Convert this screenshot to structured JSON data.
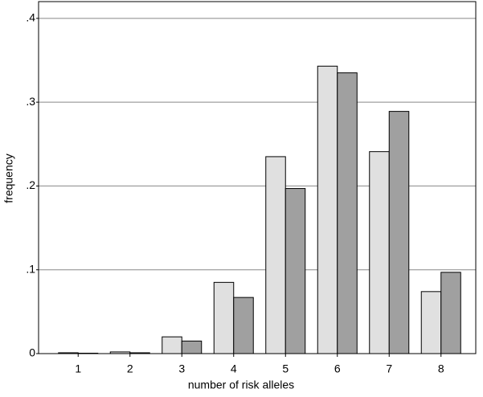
{
  "chart_data": {
    "type": "bar",
    "x_label": "number of risk alleles",
    "y_label": "frequency",
    "categories": [
      "1",
      "2",
      "3",
      "4",
      "5",
      "6",
      "7",
      "8"
    ],
    "series": [
      {
        "color": "#e0e0e0",
        "values": [
          0.001,
          0.002,
          0.02,
          0.085,
          0.235,
          0.343,
          0.241,
          0.074
        ]
      },
      {
        "color": "#a0a0a0",
        "values": [
          0.0005,
          0.001,
          0.015,
          0.067,
          0.197,
          0.335,
          0.289,
          0.097
        ]
      }
    ],
    "ylim": [
      0,
      0.42
    ],
    "yticks": [
      0,
      {
        "value": 0.1,
        "label": ".1"
      },
      {
        "value": 0.2,
        "label": ".2"
      },
      {
        "value": 0.3,
        "label": ".3"
      },
      {
        "value": 0.4,
        "label": ".4"
      }
    ],
    "grid": true
  }
}
